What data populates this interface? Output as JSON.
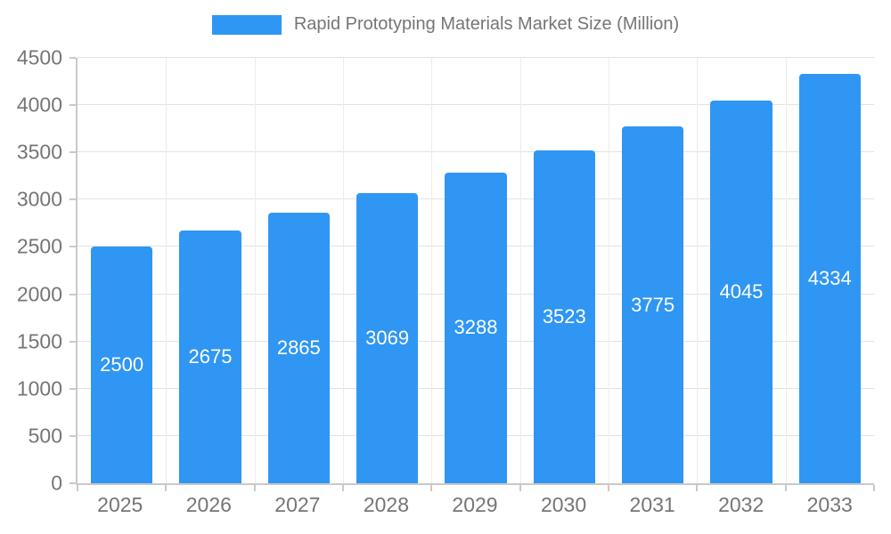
{
  "legend": {
    "label": "Rapid Prototyping Materials Market Size (Million)",
    "swatch_color": "#2F96F3"
  },
  "chart_data": {
    "type": "bar",
    "title": "Rapid Prototyping Materials Market Size (Million)",
    "categories": [
      "2025",
      "2026",
      "2027",
      "2028",
      "2029",
      "2030",
      "2031",
      "2032",
      "2033"
    ],
    "values": [
      2500,
      2675,
      2865,
      3069,
      3288,
      3523,
      3775,
      4045,
      4334
    ],
    "xlabel": "",
    "ylabel": "",
    "ylim": [
      0,
      4500
    ],
    "yticks": [
      0,
      500,
      1000,
      1500,
      2000,
      2500,
      3000,
      3500,
      4000,
      4500
    ],
    "grid": true,
    "legend_position": "top",
    "bar_color": "#2F96F3",
    "label_color": "#ffffff"
  }
}
